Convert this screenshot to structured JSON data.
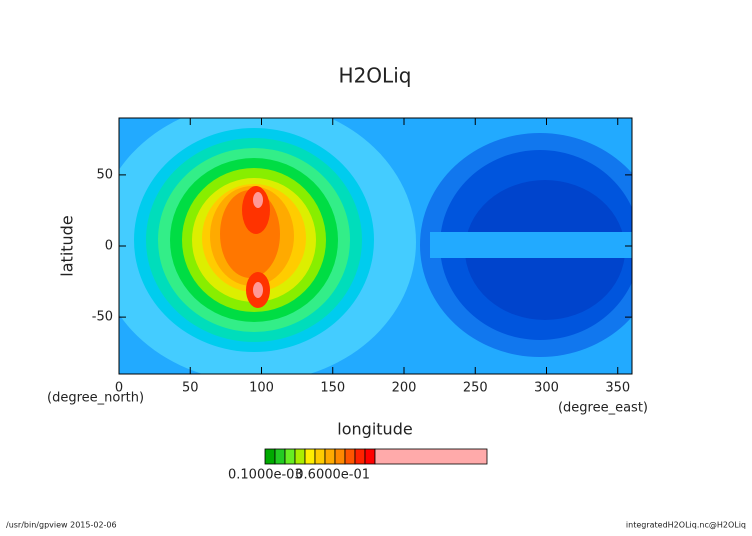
{
  "chart_data": {
    "type": "contour",
    "title": "H2OLiq",
    "xlabel": "longitude",
    "ylabel": "latitude",
    "xunit": "(degree_east)",
    "yunit": "(degree_north)",
    "xlim": [
      0,
      360
    ],
    "xticks": [
      0,
      50,
      100,
      150,
      200,
      250,
      300,
      350
    ],
    "ylim": [
      -90,
      90
    ],
    "yticks": [
      -50,
      0,
      50
    ],
    "colorbar": {
      "colors": [
        "#00aa00",
        "#22cc22",
        "#66ee22",
        "#aaee00",
        "#ffee00",
        "#ffcc00",
        "#ffaa00",
        "#ff8800",
        "#ff5500",
        "#ff2200",
        "#ff0000",
        "#ffaaaa"
      ],
      "labels": [
        "0.1000e-03",
        "0.6000e-01"
      ]
    },
    "footer_left": "/usr/bin/gpview  2015-02-06",
    "footer_right": "integratedH2OLiq.nc@H2OLiq"
  }
}
